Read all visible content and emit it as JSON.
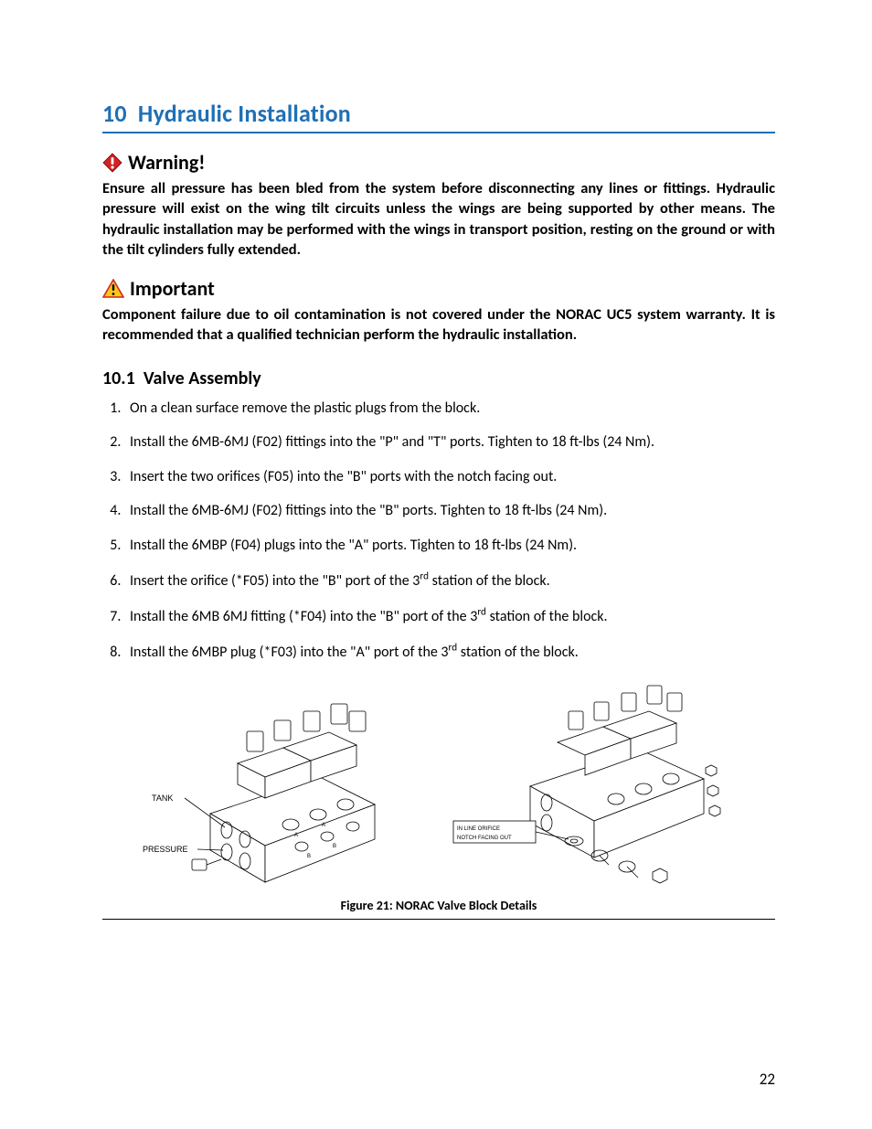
{
  "section": {
    "number": "10",
    "title": "Hydraulic Installation"
  },
  "warning": {
    "label": "Warning!",
    "icon_color": "#d22323",
    "body": "Ensure all pressure has been bled from the system before disconnecting any lines or fittings.  Hydraulic pressure will exist on the wing tilt circuits unless the wings are being supported by other means.  The hydraulic installation may be performed with the wings in transport position, resting on the ground or with the tilt cylinders fully extended."
  },
  "important": {
    "label": "Important",
    "icon_border": "#d22323",
    "icon_fill": "#f9c918",
    "body": "Component failure due to oil contamination is not covered under the NORAC UC5 system warranty. It is recommended that a qualified technician perform the hydraulic installation."
  },
  "subsection": {
    "number": "10.1",
    "title": "Valve Assembly"
  },
  "steps": [
    "On a clean surface remove the plastic plugs from the block.",
    "Install the 6MB-6MJ (F02) fittings into the \"P\" and \"T\" ports.  Tighten to 18 ft-lbs (24 Nm).",
    "Insert the two orifices (F05) into the \"B\" ports with the notch facing out.",
    "Install the 6MB-6MJ (F02) fittings into the \"B\" ports.  Tighten to 18 ft-lbs (24 Nm).",
    "Install the 6MBP (F04) plugs into the \"A\" ports.  Tighten to 18 ft-lbs (24 Nm).",
    "Insert the orifice (*F05) into the \"B\" port of the 3<sup class=\"sup\">rd</sup> station of the block.",
    "Install the 6MB 6MJ fitting (*F04) into the \"B\" port of the 3<sup class=\"sup\">rd</sup> station of the block.",
    "Install the 6MBP plug (*F03) into the \"A\" port of the 3<sup class=\"sup\">rd</sup> station of the block."
  ],
  "figure": {
    "caption": "Figure 21:  NORAC Valve Block Details",
    "left_labels": {
      "tank": "TANK",
      "pressure": "PRESSURE"
    },
    "right_labels": {
      "line1": "IN LINE ORIFICE",
      "line2": "NOTCH FACING OUT"
    }
  },
  "page_number": "22",
  "colors": {
    "heading_blue": "#1f6fb5",
    "text": "#000000",
    "background": "#ffffff"
  }
}
